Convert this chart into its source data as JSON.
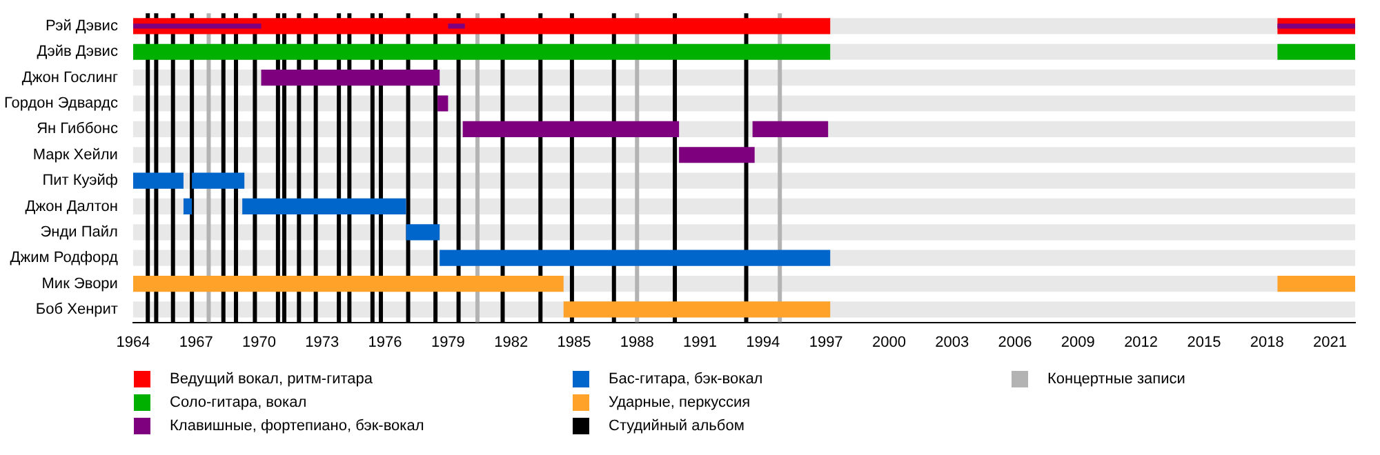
{
  "chart_data": {
    "type": "bar",
    "orientation": "horizontal",
    "categories": [
      "Рэй Дэвис",
      "Дэйв Дэвис",
      "Джон Гослинг",
      "Гордон Эдвардс",
      "Ян Гиббонс",
      "Марк Хейли",
      "Пит Куэйф",
      "Джон Далтон",
      "Энди Пайл",
      "Джим Родфорд",
      "Мик Эвори",
      "Боб Хенрит"
    ],
    "xlim": [
      1964,
      2022.2
    ],
    "xticks": [
      1964,
      1967,
      1970,
      1973,
      1976,
      1979,
      1982,
      1985,
      1988,
      1991,
      1994,
      1997,
      2000,
      2003,
      2006,
      2009,
      2012,
      2015,
      2018,
      2021
    ],
    "legend": "bottom",
    "grid": false,
    "series": [
      {
        "name": "Ведущий вокал, ритм-гитара",
        "color": "#ff0000",
        "base": [
          1964,
          null,
          null,
          null,
          null,
          null,
          null,
          null,
          null,
          null,
          null,
          null
        ],
        "values": [
          33.2,
          null,
          null,
          null,
          null,
          null,
          null,
          null,
          null,
          null,
          null,
          null
        ]
      },
      {
        "color": "#ff0000",
        "base": [
          2018.5,
          null,
          null,
          null,
          null,
          null,
          null,
          null,
          null,
          null,
          null,
          null
        ],
        "values": [
          3.7,
          null,
          null,
          null,
          null,
          null,
          null,
          null,
          null,
          null,
          null,
          null
        ]
      },
      {
        "name": "Соло-гитара, вокал",
        "color": "#00b000",
        "base": [
          null,
          1964,
          null,
          null,
          null,
          null,
          null,
          null,
          null,
          null,
          null,
          null
        ],
        "values": [
          null,
          33.2,
          null,
          null,
          null,
          null,
          null,
          null,
          null,
          null,
          null,
          null
        ]
      },
      {
        "color": "#00b000",
        "base": [
          null,
          2018.5,
          null,
          null,
          null,
          null,
          null,
          null,
          null,
          null,
          null,
          null
        ],
        "values": [
          null,
          3.7,
          null,
          null,
          null,
          null,
          null,
          null,
          null,
          null,
          null,
          null
        ]
      },
      {
        "name": "Клавишные, фортепиано, бэк-вокал",
        "color": "#7f007f",
        "base": [
          null,
          null,
          1970.1,
          1978.5,
          1979.7,
          1990,
          null,
          null,
          null,
          null,
          null,
          null
        ],
        "values": [
          null,
          null,
          8.5,
          0.5,
          10.3,
          3.6,
          null,
          null,
          null,
          null,
          null,
          null
        ]
      },
      {
        "color": "#7f007f",
        "base": [
          null,
          null,
          null,
          null,
          1993.5,
          null,
          null,
          null,
          null,
          null,
          null,
          null
        ],
        "values": [
          null,
          null,
          null,
          null,
          3.6,
          null,
          null,
          null,
          null,
          null,
          null,
          null
        ]
      },
      {
        "color": "#7f007f",
        "base": [
          1964,
          null,
          null,
          null,
          null,
          null,
          null,
          null,
          null,
          null,
          null,
          null
        ],
        "values": [
          6.1,
          null,
          null,
          null,
          null,
          null,
          null,
          null,
          null,
          null,
          null,
          null
        ]
      },
      {
        "color": "#7f007f",
        "base": [
          1979,
          null,
          null,
          null,
          null,
          null,
          null,
          null,
          null,
          null,
          null,
          null
        ],
        "values": [
          0.8,
          null,
          null,
          null,
          null,
          null,
          null,
          null,
          null,
          null,
          null,
          null
        ]
      },
      {
        "color": "#7f007f",
        "base": [
          2018.5,
          null,
          null,
          null,
          null,
          null,
          null,
          null,
          null,
          null,
          null,
          null
        ],
        "values": [
          3.7,
          null,
          null,
          null,
          null,
          null,
          null,
          null,
          null,
          null,
          null,
          null
        ]
      },
      {
        "name": "Бас-гитара, бэк-вокал",
        "color": "#0066cc",
        "base": [
          null,
          null,
          null,
          null,
          null,
          null,
          1964,
          1966.4,
          1977,
          1978.6,
          null,
          null
        ],
        "values": [
          null,
          null,
          null,
          null,
          null,
          null,
          2.4,
          0.4,
          1.6,
          18.6,
          null,
          null
        ]
      },
      {
        "color": "#0066cc",
        "base": [
          null,
          null,
          null,
          null,
          null,
          null,
          1966.8,
          1969.2,
          null,
          null,
          null,
          null
        ],
        "values": [
          null,
          null,
          null,
          null,
          null,
          null,
          2.5,
          7.8,
          null,
          null,
          null,
          null
        ]
      },
      {
        "name": "Ударные, перкуссия",
        "color": "#ffa229",
        "base": [
          null,
          null,
          null,
          null,
          null,
          null,
          null,
          null,
          null,
          null,
          1964,
          1984.5
        ],
        "values": [
          null,
          null,
          null,
          null,
          null,
          null,
          null,
          null,
          null,
          null,
          20.5,
          12.7
        ]
      },
      {
        "color": "#ffa229",
        "base": [
          null,
          null,
          null,
          null,
          null,
          null,
          null,
          null,
          null,
          null,
          2018.5,
          null
        ],
        "values": [
          null,
          null,
          null,
          null,
          null,
          null,
          null,
          null,
          null,
          null,
          3.7,
          null
        ]
      }
    ],
    "ref_lines": [
      {
        "axis": "x",
        "value": 1964.7,
        "color": "#000000",
        "label": "Студийный альбом"
      },
      {
        "axis": "x",
        "value": 1965.1,
        "color": "#000000"
      },
      {
        "axis": "x",
        "value": 1965.9,
        "color": "#000000"
      },
      {
        "axis": "x",
        "value": 1966.8,
        "color": "#000000"
      },
      {
        "axis": "x",
        "value": 1968.3,
        "color": "#000000"
      },
      {
        "axis": "x",
        "value": 1968.9,
        "color": "#000000"
      },
      {
        "axis": "x",
        "value": 1969.8,
        "color": "#000000"
      },
      {
        "axis": "x",
        "value": 1970.9,
        "color": "#000000"
      },
      {
        "axis": "x",
        "value": 1971.2,
        "color": "#000000"
      },
      {
        "axis": "x",
        "value": 1971.9,
        "color": "#000000"
      },
      {
        "axis": "x",
        "value": 1972.7,
        "color": "#000000"
      },
      {
        "axis": "x",
        "value": 1973.8,
        "color": "#000000"
      },
      {
        "axis": "x",
        "value": 1974.3,
        "color": "#000000"
      },
      {
        "axis": "x",
        "value": 1975.4,
        "color": "#000000"
      },
      {
        "axis": "x",
        "value": 1975.8,
        "color": "#000000"
      },
      {
        "axis": "x",
        "value": 1977.1,
        "color": "#000000"
      },
      {
        "axis": "x",
        "value": 1978.4,
        "color": "#000000"
      },
      {
        "axis": "x",
        "value": 1979.5,
        "color": "#000000"
      },
      {
        "axis": "x",
        "value": 1981.6,
        "color": "#000000"
      },
      {
        "axis": "x",
        "value": 1983.4,
        "color": "#000000"
      },
      {
        "axis": "x",
        "value": 1984.9,
        "color": "#000000"
      },
      {
        "axis": "x",
        "value": 1986.9,
        "color": "#000000"
      },
      {
        "axis": "x",
        "value": 1989.8,
        "color": "#000000"
      },
      {
        "axis": "x",
        "value": 1993.2,
        "color": "#000000"
      },
      {
        "axis": "x",
        "value": 1967.6,
        "color": "#b3b3b3",
        "label": "Концертные записи"
      },
      {
        "axis": "x",
        "value": 1980.4,
        "color": "#b3b3b3"
      },
      {
        "axis": "x",
        "value": 1988,
        "color": "#b3b3b3"
      },
      {
        "axis": "x",
        "value": 1994.8,
        "color": "#b3b3b3"
      }
    ]
  }
}
